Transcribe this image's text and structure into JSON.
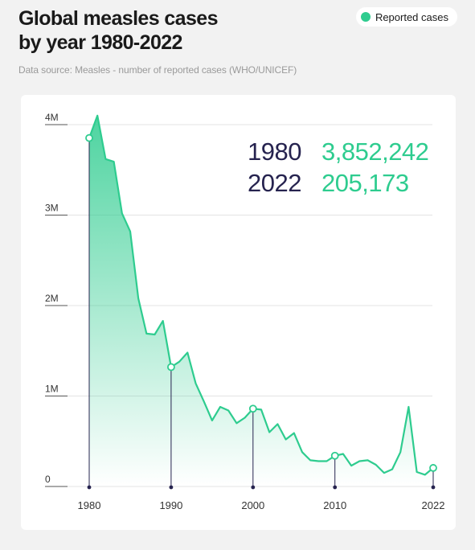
{
  "title": {
    "line1": "Global measles cases",
    "line2": "by year 1980-2022"
  },
  "legend": {
    "label": "Reported cases",
    "color": "#2ecc8f"
  },
  "subtitle": "Data source: Measles - number of reported cases (WHO/UNICEF)",
  "callouts": [
    {
      "year": "1980",
      "value": "3,852,242"
    },
    {
      "year": "2022",
      "value": "205,173"
    }
  ],
  "colors": {
    "line": "#2ecc8f",
    "navy": "#26234f",
    "grid": "#e3e3e3"
  },
  "chart_data": {
    "type": "area",
    "title": "Global measles cases by year 1980-2022",
    "xlabel": "",
    "ylabel": "",
    "ylim": [
      0,
      4000000
    ],
    "xlim": [
      1980,
      2022
    ],
    "grid": true,
    "legend_position": "top-right",
    "yticks": [
      0,
      1000000,
      2000000,
      3000000,
      4000000
    ],
    "ytick_labels": [
      "0",
      "1M",
      "2M",
      "3M",
      "4M"
    ],
    "xticks": [
      1980,
      1990,
      2000,
      2010,
      2022
    ],
    "xtick_labels": [
      "1980",
      "1990",
      "2000",
      "2010",
      "2022"
    ],
    "highlight_years": [
      1980,
      1990,
      2000,
      2010,
      2022
    ],
    "series": [
      {
        "name": "Reported cases",
        "x": [
          1980,
          1981,
          1982,
          1983,
          1984,
          1985,
          1986,
          1987,
          1988,
          1989,
          1990,
          1991,
          1992,
          1993,
          1994,
          1995,
          1996,
          1997,
          1998,
          1999,
          2000,
          2001,
          2002,
          2003,
          2004,
          2005,
          2006,
          2007,
          2008,
          2009,
          2010,
          2011,
          2012,
          2013,
          2014,
          2015,
          2016,
          2017,
          2018,
          2019,
          2020,
          2021,
          2022
        ],
        "y": [
          3852242,
          4100000,
          3620000,
          3590000,
          3020000,
          2820000,
          2080000,
          1690000,
          1680000,
          1830000,
          1320000,
          1380000,
          1480000,
          1140000,
          940000,
          730000,
          880000,
          840000,
          700000,
          760000,
          860000,
          850000,
          600000,
          690000,
          520000,
          590000,
          380000,
          290000,
          280000,
          280000,
          340000,
          360000,
          230000,
          280000,
          290000,
          240000,
          150000,
          190000,
          380000,
          880000,
          160000,
          130000,
          205173
        ]
      }
    ]
  }
}
